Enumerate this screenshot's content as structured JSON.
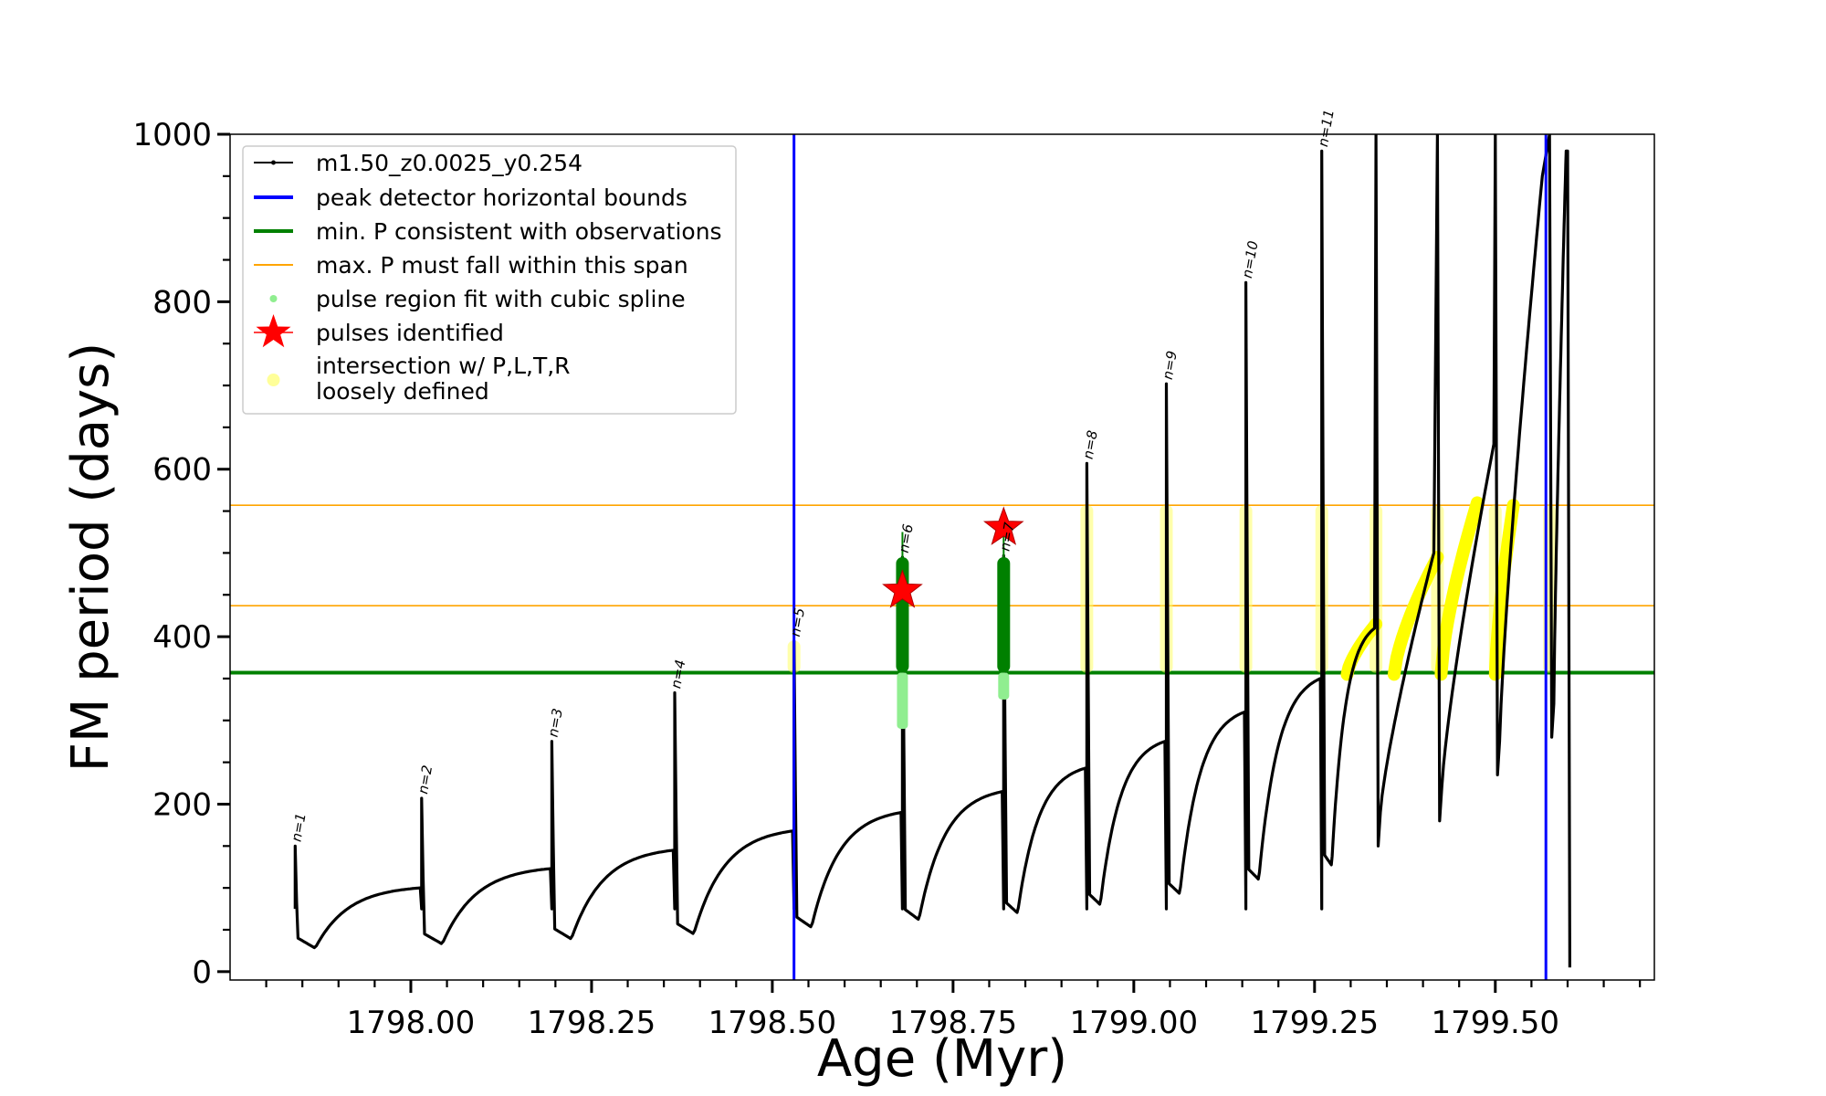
{
  "chart_data": {
    "type": "line",
    "xlabel": "Age (Myr)",
    "ylabel": "FM period (days)",
    "xlim": [
      1797.75,
      1799.72
    ],
    "ylim": [
      -10,
      1000
    ],
    "xticks": [
      1798.0,
      1798.25,
      1798.5,
      1798.75,
      1799.0,
      1799.25,
      1799.5
    ],
    "xtick_labels": [
      "1798.00",
      "1798.25",
      "1798.50",
      "1798.75",
      "1799.00",
      "1799.25",
      "1799.50"
    ],
    "yticks": [
      0,
      200,
      400,
      600,
      800,
      1000
    ],
    "ytick_labels": [
      "0",
      "200",
      "400",
      "600",
      "800",
      "1000"
    ],
    "grid": false,
    "legend_position": "top-left",
    "legend": [
      {
        "label": "m1.50_z0.0025_y0.254",
        "style": "line-dot",
        "color": "#000000"
      },
      {
        "label": "peak detector horizontal bounds",
        "style": "line",
        "color": "#0000ff"
      },
      {
        "label": "min. P consistent with observations",
        "style": "line",
        "color": "#008000"
      },
      {
        "label": "max. P must fall within this span",
        "style": "thin-line",
        "color": "#ffa500"
      },
      {
        "label": "pulse region fit with cubic spline",
        "style": "dot",
        "color": "#90ee90"
      },
      {
        "label": "pulses identified",
        "style": "star",
        "color": "#ff0000"
      },
      {
        "label": "intersection w/ P,L,T,R",
        "style": "text",
        "color": "#ffff99"
      },
      {
        "label": "loosely defined",
        "style": "dot-big",
        "color": "#ffff99"
      }
    ],
    "vertical_lines": [
      1798.53,
      1799.57
    ],
    "min_p_line": 357,
    "max_p_span": [
      437,
      557
    ],
    "pulses": [
      {
        "label": "n=1",
        "x": 1797.84,
        "peak": 150,
        "trough": 28,
        "base_next": 100
      },
      {
        "label": "n=2",
        "x": 1798.015,
        "peak": 207,
        "trough": 33,
        "base_next": 123
      },
      {
        "label": "n=3",
        "x": 1798.195,
        "peak": 275,
        "trough": 39,
        "base_next": 145
      },
      {
        "label": "n=4",
        "x": 1798.365,
        "peak": 333,
        "trough": 45,
        "base_next": 168
      },
      {
        "label": "n=5",
        "x": 1798.53,
        "peak": 395,
        "trough": 53,
        "base_next": 190
      },
      {
        "label": "n=6",
        "x": 1798.68,
        "peak": 495,
        "trough": 62,
        "base_next": 215
      },
      {
        "label": "n=7",
        "x": 1798.82,
        "peak": 497,
        "trough": 70,
        "base_next": 243
      },
      {
        "label": "n=8",
        "x": 1798.935,
        "peak": 607,
        "trough": 80,
        "base_next": 275
      },
      {
        "label": "n=9",
        "x": 1799.045,
        "peak": 702,
        "trough": 93,
        "base_next": 310
      },
      {
        "label": "n=10",
        "x": 1799.155,
        "peak": 823,
        "trough": 110,
        "base_next": 350
      },
      {
        "label": "n=11",
        "x": 1799.26,
        "peak": 980,
        "trough": 127,
        "base_next": 410
      }
    ],
    "late_spikes": [
      {
        "x": 1799.335,
        "peak": 1000,
        "trough": 150
      },
      {
        "x": 1799.42,
        "peak": 1000,
        "trough": 180
      },
      {
        "x": 1799.5,
        "peak": 1000,
        "trough": 235
      },
      {
        "x": 1799.575,
        "peak": 1000,
        "trough": 280
      }
    ],
    "identified_pulses": [
      {
        "x": 1798.68,
        "y": 455
      },
      {
        "x": 1798.82,
        "y": 530
      }
    ],
    "spline_regions": [
      {
        "x": 1798.68,
        "y_min": 290,
        "y_max": 525
      },
      {
        "x": 1798.82,
        "y_min": 325,
        "y_max": 520
      }
    ]
  }
}
